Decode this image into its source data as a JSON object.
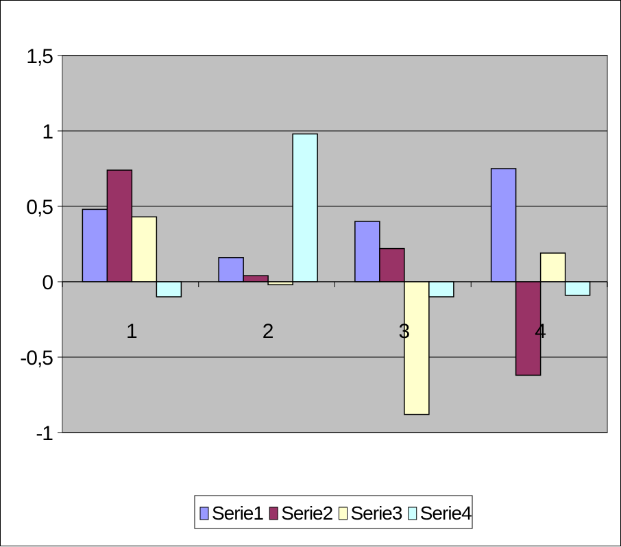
{
  "chart_data": {
    "type": "bar",
    "categories": [
      "1",
      "2",
      "3",
      "4"
    ],
    "series": [
      {
        "name": "Serie1",
        "color": "#9999FF",
        "values": [
          0.48,
          0.16,
          0.4,
          0.75
        ]
      },
      {
        "name": "Serie2",
        "color": "#993366",
        "values": [
          0.74,
          0.04,
          0.22,
          -0.62
        ]
      },
      {
        "name": "Serie3",
        "color": "#FFFFCC",
        "values": [
          0.43,
          -0.02,
          -0.88,
          0.19
        ]
      },
      {
        "name": "Serie4",
        "color": "#CCFFFF",
        "values": [
          -0.1,
          0.98,
          -0.1,
          -0.09
        ]
      }
    ],
    "y_ticks": [
      "1,5",
      "1",
      "0,5",
      "0",
      "-0,5",
      "-1"
    ],
    "ylim": [
      -1,
      1.5
    ],
    "grid": true,
    "legend_position": "bottom",
    "plot_background": "#C0C0C0"
  }
}
